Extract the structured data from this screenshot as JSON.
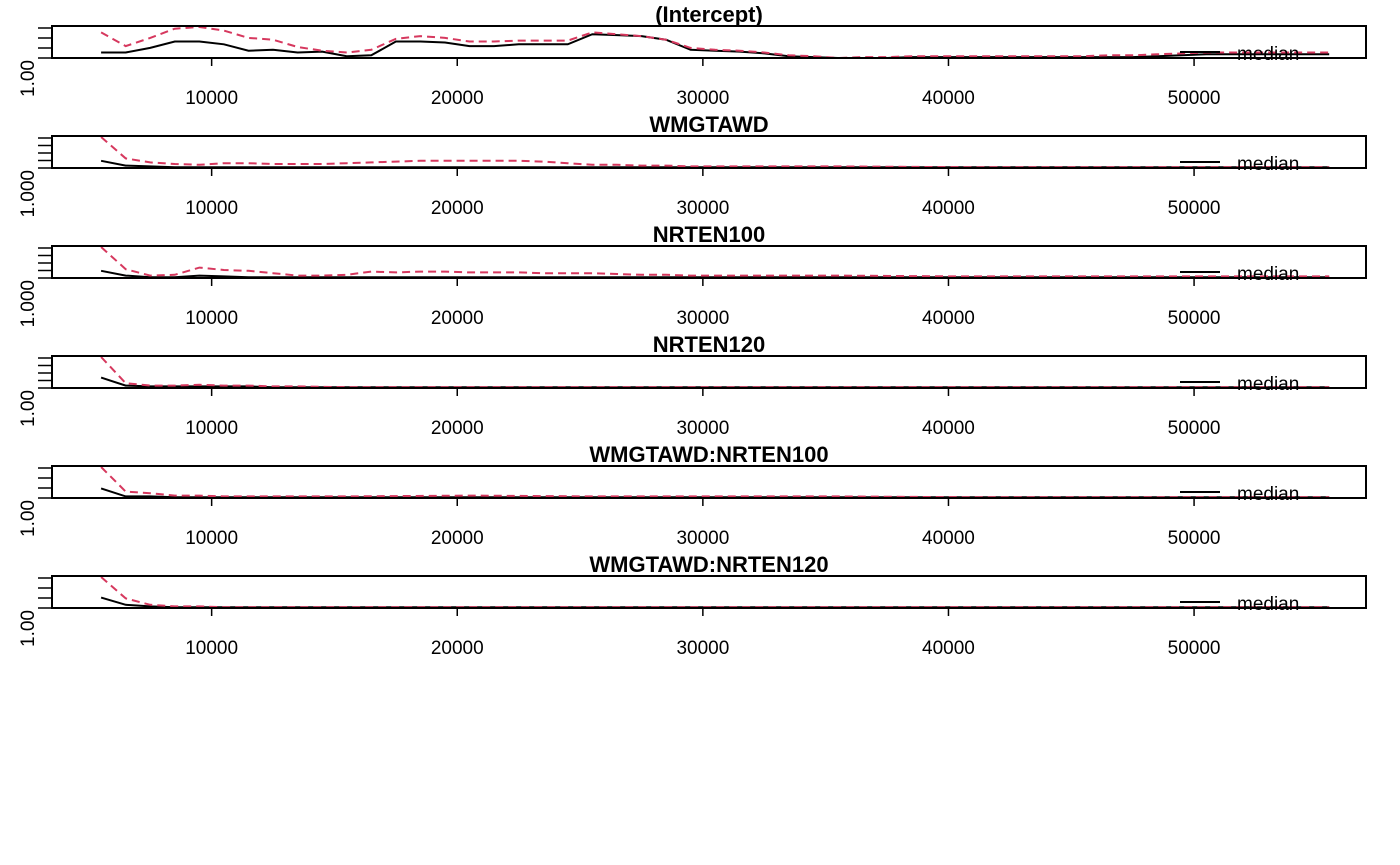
{
  "chart_data": [
    {
      "type": "line",
      "title": "(Intercept)",
      "xlim": [
        3500,
        57000
      ],
      "ylim": [
        1.0,
        4.5
      ],
      "xticks": [
        10000,
        20000,
        30000,
        40000,
        50000
      ],
      "xtick_labels": [
        "10000",
        "20000",
        "30000",
        "40000",
        "50000"
      ],
      "ytick_labels": [
        "1.00"
      ],
      "ytick_count": 4,
      "legend": {
        "label": "median",
        "position": "bottom-right"
      },
      "x": [
        5500,
        6500,
        7500,
        8500,
        9500,
        10500,
        11500,
        12500,
        13500,
        14500,
        15500,
        16500,
        17500,
        18500,
        19500,
        20500,
        21500,
        22500,
        23500,
        24500,
        25500,
        26500,
        27500,
        28500,
        29500,
        30500,
        31500,
        32500,
        33500,
        34500,
        35500,
        36500,
        37500,
        38500,
        39500,
        40500,
        41500,
        42500,
        43500,
        44500,
        45500,
        46500,
        47500,
        48500,
        49500,
        50500,
        51500,
        52500,
        53500,
        54500,
        55500
      ],
      "series": [
        {
          "style": "solid",
          "color": "#000000",
          "values": [
            1.6,
            1.6,
            2.1,
            2.8,
            2.8,
            2.5,
            1.8,
            1.9,
            1.6,
            1.7,
            1.2,
            1.3,
            2.8,
            2.8,
            2.7,
            2.3,
            2.3,
            2.5,
            2.5,
            2.5,
            3.6,
            3.5,
            3.4,
            3.0,
            1.9,
            1.8,
            1.7,
            1.5,
            1.2,
            1.1,
            1.0,
            1.0,
            1.0,
            1.1,
            1.1,
            1.1,
            1.1,
            1.1,
            1.1,
            1.1,
            1.1,
            1.1,
            1.1,
            1.2,
            1.3,
            1.4,
            1.4,
            1.4,
            1.4,
            1.4,
            1.4
          ]
        },
        {
          "style": "dashed",
          "color": "#d6385e",
          "values": [
            3.8,
            2.3,
            3.2,
            4.2,
            4.4,
            4.0,
            3.2,
            3.0,
            2.2,
            1.8,
            1.6,
            1.9,
            3.1,
            3.4,
            3.2,
            2.8,
            2.8,
            2.9,
            2.9,
            2.9,
            3.8,
            3.6,
            3.4,
            3.0,
            2.1,
            1.9,
            1.8,
            1.6,
            1.3,
            1.2,
            1.0,
            1.1,
            1.1,
            1.2,
            1.2,
            1.2,
            1.2,
            1.2,
            1.2,
            1.2,
            1.2,
            1.3,
            1.3,
            1.4,
            1.5,
            1.6,
            1.6,
            1.6,
            1.6,
            1.6,
            1.6
          ]
        }
      ]
    },
    {
      "type": "line",
      "title": "WMGTAWD",
      "xlim": [
        3500,
        57000
      ],
      "ylim": [
        1.0,
        5.0
      ],
      "xticks": [
        10000,
        20000,
        30000,
        40000,
        50000
      ],
      "xtick_labels": [
        "10000",
        "20000",
        "30000",
        "40000",
        "50000"
      ],
      "ytick_labels": [
        "1.000"
      ],
      "ytick_count": 5,
      "legend": {
        "label": "median",
        "position": "bottom-right"
      },
      "x": [
        5500,
        6500,
        7500,
        8500,
        9500,
        10500,
        11500,
        12500,
        13500,
        14500,
        15500,
        16500,
        17500,
        18500,
        19500,
        20500,
        21500,
        22500,
        23500,
        24500,
        25500,
        26500,
        27500,
        28500,
        29500,
        30500,
        32500,
        35500,
        40500,
        45500,
        50500,
        55500
      ],
      "series": [
        {
          "style": "solid",
          "color": "#000000",
          "values": [
            1.9,
            1.3,
            1.2,
            1.1,
            1.1,
            1.1,
            1.1,
            1.1,
            1.1,
            1.1,
            1.1,
            1.1,
            1.1,
            1.1,
            1.1,
            1.1,
            1.1,
            1.1,
            1.1,
            1.1,
            1.1,
            1.1,
            1.1,
            1.1,
            1.1,
            1.1,
            1.1,
            1.1,
            1.1,
            1.1,
            1.1,
            1.1
          ]
        },
        {
          "style": "dashed",
          "color": "#d6385e",
          "values": [
            5.0,
            2.2,
            1.7,
            1.5,
            1.4,
            1.6,
            1.6,
            1.5,
            1.5,
            1.5,
            1.6,
            1.7,
            1.8,
            1.9,
            1.9,
            1.9,
            1.9,
            1.9,
            1.8,
            1.6,
            1.4,
            1.4,
            1.3,
            1.3,
            1.2,
            1.2,
            1.2,
            1.2,
            1.1,
            1.1,
            1.1,
            1.1
          ]
        }
      ]
    },
    {
      "type": "line",
      "title": "NRTEN100",
      "xlim": [
        3500,
        57000
      ],
      "ylim": [
        1.0,
        5.0
      ],
      "xticks": [
        10000,
        20000,
        30000,
        40000,
        50000
      ],
      "xtick_labels": [
        "10000",
        "20000",
        "30000",
        "40000",
        "50000"
      ],
      "ytick_labels": [
        "1.000"
      ],
      "ytick_count": 5,
      "legend": {
        "label": "median",
        "position": "bottom-right"
      },
      "x": [
        5500,
        6500,
        7500,
        8500,
        9500,
        10500,
        11500,
        12500,
        13500,
        14500,
        15500,
        16500,
        17500,
        18500,
        19500,
        20500,
        21500,
        22500,
        23500,
        24500,
        25500,
        26500,
        27500,
        28500,
        29500,
        30500,
        32500,
        35500,
        40500,
        45500,
        50500,
        55500
      ],
      "series": [
        {
          "style": "solid",
          "color": "#000000",
          "values": [
            1.9,
            1.3,
            1.1,
            1.1,
            1.3,
            1.2,
            1.1,
            1.1,
            1.1,
            1.1,
            1.1,
            1.1,
            1.1,
            1.1,
            1.1,
            1.1,
            1.1,
            1.1,
            1.1,
            1.1,
            1.1,
            1.1,
            1.1,
            1.1,
            1.1,
            1.1,
            1.1,
            1.1,
            1.1,
            1.1,
            1.1,
            1.1
          ]
        },
        {
          "style": "dashed",
          "color": "#d6385e",
          "values": [
            5.0,
            2.1,
            1.3,
            1.4,
            2.3,
            2.0,
            1.9,
            1.6,
            1.3,
            1.3,
            1.4,
            1.8,
            1.7,
            1.8,
            1.8,
            1.7,
            1.7,
            1.7,
            1.6,
            1.6,
            1.6,
            1.5,
            1.4,
            1.4,
            1.3,
            1.3,
            1.3,
            1.3,
            1.2,
            1.2,
            1.2,
            1.2
          ]
        }
      ]
    },
    {
      "type": "line",
      "title": "NRTEN120",
      "xlim": [
        3500,
        57000
      ],
      "ylim": [
        1.0,
        5.0
      ],
      "xticks": [
        10000,
        20000,
        30000,
        40000,
        50000
      ],
      "xtick_labels": [
        "10000",
        "20000",
        "30000",
        "40000",
        "50000"
      ],
      "ytick_labels": [
        "1.00"
      ],
      "ytick_count": 5,
      "legend": {
        "label": "median",
        "position": "bottom-right"
      },
      "x": [
        5500,
        6500,
        7500,
        8500,
        9500,
        10500,
        11500,
        12500,
        13500,
        15500,
        20500,
        25500,
        30500,
        35500,
        40500,
        45500,
        50500,
        55500
      ],
      "series": [
        {
          "style": "solid",
          "color": "#000000",
          "values": [
            2.3,
            1.3,
            1.2,
            1.2,
            1.2,
            1.2,
            1.2,
            1.1,
            1.1,
            1.1,
            1.1,
            1.1,
            1.1,
            1.1,
            1.1,
            1.1,
            1.1,
            1.1
          ]
        },
        {
          "style": "dashed",
          "color": "#d6385e",
          "values": [
            5.0,
            1.6,
            1.3,
            1.3,
            1.4,
            1.3,
            1.3,
            1.2,
            1.2,
            1.1,
            1.1,
            1.1,
            1.1,
            1.1,
            1.1,
            1.1,
            1.1,
            1.1
          ]
        }
      ]
    },
    {
      "type": "line",
      "title": "WMGTAWD:NRTEN100",
      "xlim": [
        3500,
        57000
      ],
      "ylim": [
        1.0,
        5.0
      ],
      "xticks": [
        10000,
        20000,
        30000,
        40000,
        50000
      ],
      "xtick_labels": [
        "10000",
        "20000",
        "30000",
        "40000",
        "50000"
      ],
      "ytick_labels": [
        "1.00"
      ],
      "ytick_count": 4,
      "legend": {
        "label": "median",
        "position": "bottom-right"
      },
      "x": [
        5500,
        6500,
        7500,
        8500,
        9500,
        10500,
        12500,
        15500,
        20500,
        25500,
        30500,
        35500,
        40500,
        45500,
        50500,
        55500
      ],
      "series": [
        {
          "style": "solid",
          "color": "#000000",
          "values": [
            2.2,
            1.2,
            1.2,
            1.1,
            1.1,
            1.1,
            1.1,
            1.1,
            1.1,
            1.1,
            1.1,
            1.1,
            1.1,
            1.1,
            1.1,
            1.1
          ]
        },
        {
          "style": "dashed",
          "color": "#d6385e",
          "values": [
            5.0,
            1.8,
            1.6,
            1.3,
            1.3,
            1.2,
            1.2,
            1.2,
            1.3,
            1.2,
            1.2,
            1.2,
            1.1,
            1.1,
            1.1,
            1.1
          ]
        }
      ]
    },
    {
      "type": "line",
      "title": "WMGTAWD:NRTEN120",
      "xlim": [
        3500,
        57000
      ],
      "ylim": [
        1.0,
        5.0
      ],
      "xticks": [
        10000,
        20000,
        30000,
        40000,
        50000
      ],
      "xtick_labels": [
        "10000",
        "20000",
        "30000",
        "40000",
        "50000"
      ],
      "ytick_labels": [
        "1.00"
      ],
      "ytick_count": 4,
      "legend": {
        "label": "median",
        "position": "bottom-right"
      },
      "x": [
        5500,
        6500,
        7500,
        8500,
        9500,
        10500,
        12500,
        15500,
        20500,
        25500,
        30500,
        35500,
        40500,
        45500,
        50500,
        55500
      ],
      "series": [
        {
          "style": "solid",
          "color": "#000000",
          "values": [
            2.3,
            1.4,
            1.2,
            1.1,
            1.1,
            1.1,
            1.1,
            1.1,
            1.1,
            1.1,
            1.1,
            1.1,
            1.1,
            1.1,
            1.1,
            1.1
          ]
        },
        {
          "style": "dashed",
          "color": "#d6385e",
          "values": [
            5.0,
            2.2,
            1.4,
            1.2,
            1.2,
            1.1,
            1.1,
            1.1,
            1.1,
            1.1,
            1.1,
            1.1,
            1.1,
            1.1,
            1.1,
            1.1
          ]
        }
      ]
    }
  ]
}
